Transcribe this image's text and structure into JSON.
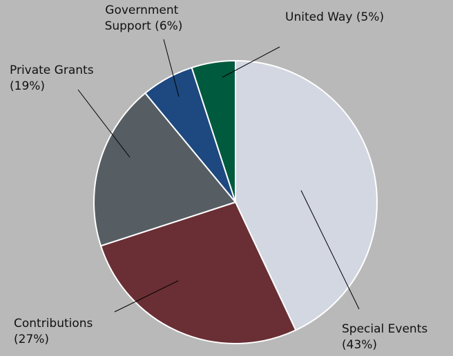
{
  "chart_data": {
    "type": "pie",
    "title": "",
    "slices": [
      {
        "label": "Special Events",
        "pct_label": "(43%)",
        "value": 43,
        "color": "#d3d7e1"
      },
      {
        "label": "Contributions",
        "pct_label": "(27%)",
        "value": 27,
        "color": "#692f35"
      },
      {
        "label": "Private Grants",
        "pct_label": "(19%)",
        "value": 19,
        "color": "#565e64"
      },
      {
        "label": "Government Support (6%)",
        "pct_label": "",
        "value": 6,
        "color": "#1e4880"
      },
      {
        "label": "United Way (5%)",
        "pct_label": "",
        "value": 5,
        "color": "#005a3d"
      }
    ]
  }
}
